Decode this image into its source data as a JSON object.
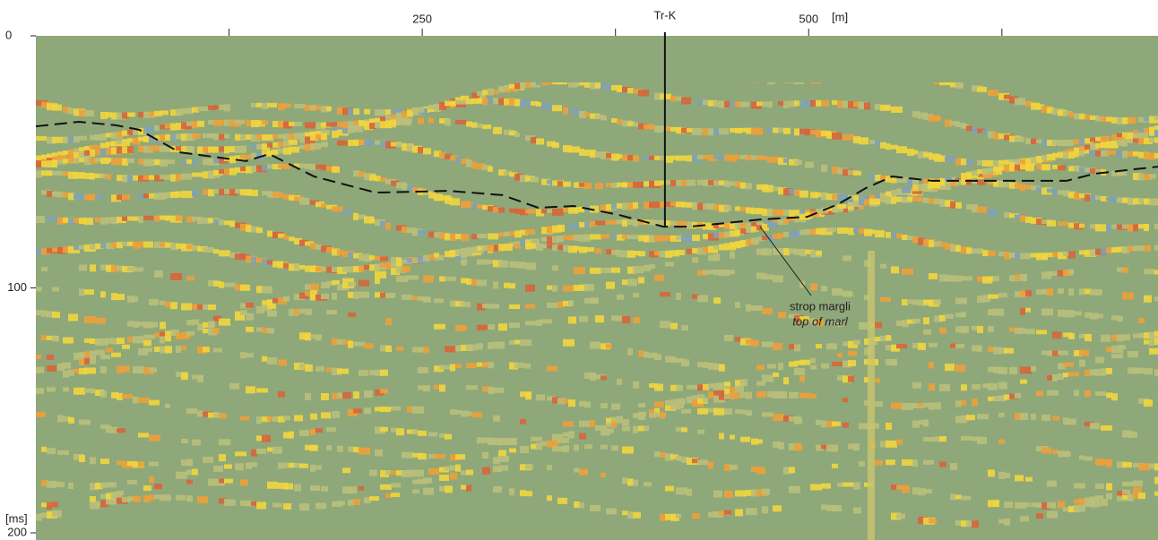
{
  "chart_data": {
    "type": "line",
    "x_label": "[m]",
    "y_label": "[ms]",
    "xlim": [
      0,
      726
    ],
    "ylim": [
      0,
      200
    ],
    "xticks": [
      250,
      500
    ],
    "x_minor_ticks": [
      125,
      375,
      625
    ],
    "yticks": [
      0,
      100,
      200
    ],
    "y_inverted": true,
    "series": [
      {
        "name": "top of marl",
        "color": "#111111",
        "dashed": true,
        "x": [
          0,
          28,
          52,
          67,
          93,
          136,
          151,
          180,
          220,
          267,
          302,
          325,
          348,
          377,
          406,
          423,
          470,
          499,
          519,
          537,
          554,
          580,
          609,
          667,
          685,
          726
        ],
        "values": [
          35.9,
          34.1,
          35.5,
          37.3,
          46.2,
          49.7,
          46.9,
          55.8,
          62.2,
          61.5,
          63.2,
          68.2,
          67.5,
          71.0,
          75.7,
          75.7,
          72.8,
          71.8,
          66.8,
          60.4,
          55.8,
          57.5,
          57.5,
          57.5,
          54.7,
          51.9
        ]
      }
    ],
    "well": {
      "name": "Tr-K",
      "x": 407,
      "depth": 76
    },
    "annotation": {
      "lines": [
        "strop margli",
        "top of marl"
      ]
    }
  }
}
